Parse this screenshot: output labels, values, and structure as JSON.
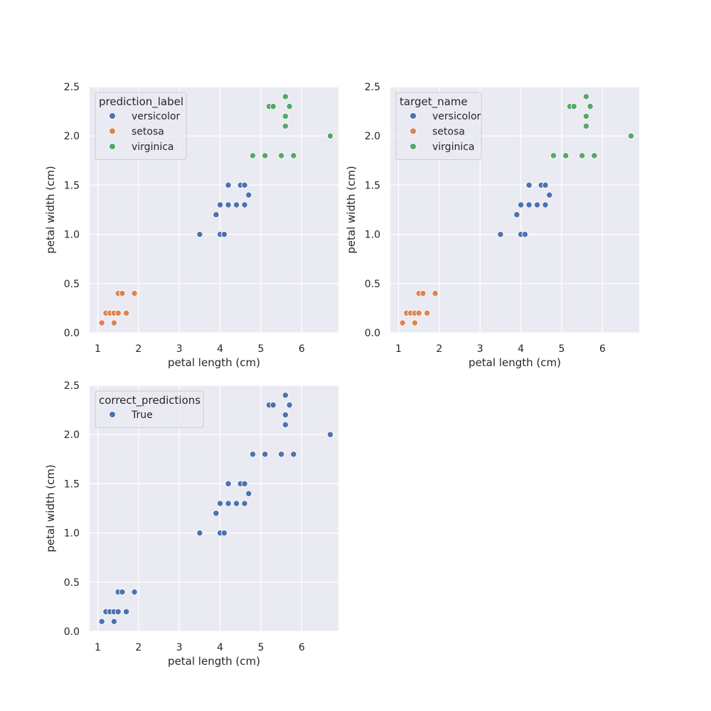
{
  "figure": {
    "background": "#ffffff"
  },
  "style": {
    "plot_bg": "#eaeaf2",
    "grid_color": "#ffffff",
    "point_edge": "#ffffff",
    "legend_bg": "#eaeaf2",
    "legend_border": "#cccccc"
  },
  "chart_data": [
    {
      "type": "scatter",
      "panel": "top-left",
      "xlabel": "petal length (cm)",
      "ylabel": "petal width (cm)",
      "xlim": [
        0.8,
        6.9
      ],
      "ylim": [
        0.0,
        2.5
      ],
      "xticks": [
        "1",
        "2",
        "3",
        "4",
        "5",
        "6"
      ],
      "yticks": [
        "0.0",
        "0.5",
        "1.0",
        "1.5",
        "2.0",
        "2.5"
      ],
      "grid": true,
      "legend": {
        "title": "prediction_label",
        "placement": "top-left",
        "entries": [
          {
            "label": "versicolor",
            "color": "#4c72b0"
          },
          {
            "label": "setosa",
            "color": "#dd8452"
          },
          {
            "label": "virginica",
            "color": "#55a868"
          }
        ]
      },
      "series": [
        {
          "name": "versicolor",
          "color": "#4c72b0",
          "points": [
            [
              3.5,
              1.0
            ],
            [
              3.9,
              1.2
            ],
            [
              4.0,
              1.0
            ],
            [
              4.1,
              1.0
            ],
            [
              4.0,
              1.3
            ],
            [
              4.2,
              1.3
            ],
            [
              4.4,
              1.3
            ],
            [
              4.6,
              1.3
            ],
            [
              4.2,
              1.5
            ],
            [
              4.5,
              1.5
            ],
            [
              4.6,
              1.5
            ],
            [
              4.7,
              1.4
            ]
          ]
        },
        {
          "name": "setosa",
          "color": "#dd8452",
          "points": [
            [
              1.1,
              0.1
            ],
            [
              1.4,
              0.1
            ],
            [
              1.2,
              0.2
            ],
            [
              1.3,
              0.2
            ],
            [
              1.4,
              0.2
            ],
            [
              1.5,
              0.2
            ],
            [
              1.7,
              0.2
            ],
            [
              1.5,
              0.4
            ],
            [
              1.6,
              0.4
            ],
            [
              1.9,
              0.4
            ]
          ]
        },
        {
          "name": "virginica",
          "color": "#55a868",
          "points": [
            [
              4.8,
              1.8
            ],
            [
              5.1,
              1.8
            ],
            [
              5.5,
              1.8
            ],
            [
              5.8,
              1.8
            ],
            [
              5.6,
              2.1
            ],
            [
              5.6,
              2.2
            ],
            [
              5.2,
              2.3
            ],
            [
              5.3,
              2.3
            ],
            [
              5.7,
              2.3
            ],
            [
              5.6,
              2.4
            ],
            [
              6.7,
              2.0
            ]
          ]
        }
      ]
    },
    {
      "type": "scatter",
      "panel": "top-right",
      "xlabel": "petal length (cm)",
      "ylabel": "petal width (cm)",
      "xlim": [
        0.8,
        6.9
      ],
      "ylim": [
        0.0,
        2.5
      ],
      "xticks": [
        "1",
        "2",
        "3",
        "4",
        "5",
        "6"
      ],
      "yticks": [
        "0.0",
        "0.5",
        "1.0",
        "1.5",
        "2.0",
        "2.5"
      ],
      "grid": true,
      "legend": {
        "title": "target_name",
        "placement": "top-left",
        "entries": [
          {
            "label": "versicolor",
            "color": "#4c72b0"
          },
          {
            "label": "setosa",
            "color": "#dd8452"
          },
          {
            "label": "virginica",
            "color": "#55a868"
          }
        ]
      },
      "series": [
        {
          "name": "versicolor",
          "color": "#4c72b0",
          "points": [
            [
              3.5,
              1.0
            ],
            [
              3.9,
              1.2
            ],
            [
              4.0,
              1.0
            ],
            [
              4.1,
              1.0
            ],
            [
              4.0,
              1.3
            ],
            [
              4.2,
              1.3
            ],
            [
              4.4,
              1.3
            ],
            [
              4.6,
              1.3
            ],
            [
              4.2,
              1.5
            ],
            [
              4.5,
              1.5
            ],
            [
              4.6,
              1.5
            ],
            [
              4.7,
              1.4
            ]
          ]
        },
        {
          "name": "setosa",
          "color": "#dd8452",
          "points": [
            [
              1.1,
              0.1
            ],
            [
              1.4,
              0.1
            ],
            [
              1.2,
              0.2
            ],
            [
              1.3,
              0.2
            ],
            [
              1.4,
              0.2
            ],
            [
              1.5,
              0.2
            ],
            [
              1.7,
              0.2
            ],
            [
              1.5,
              0.4
            ],
            [
              1.6,
              0.4
            ],
            [
              1.9,
              0.4
            ]
          ]
        },
        {
          "name": "virginica",
          "color": "#55a868",
          "points": [
            [
              4.8,
              1.8
            ],
            [
              5.1,
              1.8
            ],
            [
              5.5,
              1.8
            ],
            [
              5.8,
              1.8
            ],
            [
              5.6,
              2.1
            ],
            [
              5.6,
              2.2
            ],
            [
              5.2,
              2.3
            ],
            [
              5.3,
              2.3
            ],
            [
              5.7,
              2.3
            ],
            [
              5.6,
              2.4
            ],
            [
              6.7,
              2.0
            ]
          ]
        }
      ]
    },
    {
      "type": "scatter",
      "panel": "bottom-left",
      "xlabel": "petal length (cm)",
      "ylabel": "petal width (cm)",
      "xlim": [
        0.8,
        6.9
      ],
      "ylim": [
        0.0,
        2.5
      ],
      "xticks": [
        "1",
        "2",
        "3",
        "4",
        "5",
        "6"
      ],
      "yticks": [
        "0.0",
        "0.5",
        "1.0",
        "1.5",
        "2.0",
        "2.5"
      ],
      "grid": true,
      "legend": {
        "title": "correct_predictions",
        "placement": "top-left",
        "entries": [
          {
            "label": "True",
            "color": "#4c72b0"
          }
        ]
      },
      "series": [
        {
          "name": "True",
          "color": "#4c72b0",
          "points": [
            [
              3.5,
              1.0
            ],
            [
              3.9,
              1.2
            ],
            [
              4.0,
              1.0
            ],
            [
              4.1,
              1.0
            ],
            [
              4.0,
              1.3
            ],
            [
              4.2,
              1.3
            ],
            [
              4.4,
              1.3
            ],
            [
              4.6,
              1.3
            ],
            [
              4.2,
              1.5
            ],
            [
              4.5,
              1.5
            ],
            [
              4.6,
              1.5
            ],
            [
              4.7,
              1.4
            ],
            [
              1.1,
              0.1
            ],
            [
              1.4,
              0.1
            ],
            [
              1.2,
              0.2
            ],
            [
              1.3,
              0.2
            ],
            [
              1.4,
              0.2
            ],
            [
              1.5,
              0.2
            ],
            [
              1.7,
              0.2
            ],
            [
              1.5,
              0.4
            ],
            [
              1.6,
              0.4
            ],
            [
              1.9,
              0.4
            ],
            [
              4.8,
              1.8
            ],
            [
              5.1,
              1.8
            ],
            [
              5.5,
              1.8
            ],
            [
              5.8,
              1.8
            ],
            [
              5.6,
              2.1
            ],
            [
              5.6,
              2.2
            ],
            [
              5.2,
              2.3
            ],
            [
              5.3,
              2.3
            ],
            [
              5.7,
              2.3
            ],
            [
              5.6,
              2.4
            ],
            [
              6.7,
              2.0
            ]
          ]
        }
      ]
    }
  ]
}
